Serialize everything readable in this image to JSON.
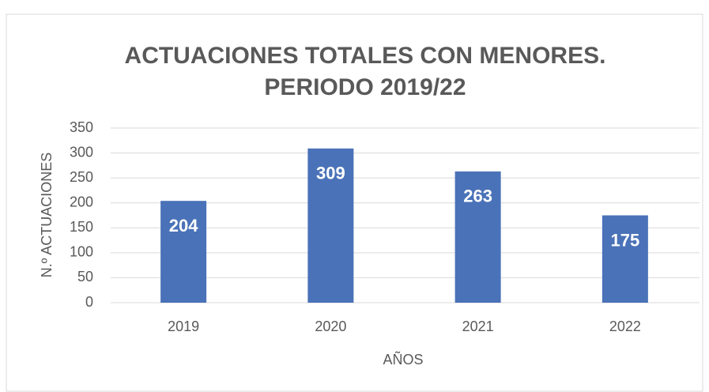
{
  "chart_data": {
    "type": "bar",
    "title": [
      "ACTUACIONES TOTALES CON MENORES.",
      "PERIODO 2019/22"
    ],
    "x_label": "AÑOS",
    "y_label": "N.º ACTUACIONES",
    "categories": [
      "2019",
      "2020",
      "2021",
      "2022"
    ],
    "values": [
      204,
      309,
      263,
      175
    ],
    "color": "#4a72b8",
    "ylim": [
      0,
      350
    ],
    "yticks": [
      0,
      50,
      100,
      150,
      200,
      250,
      300,
      350
    ],
    "grid": true,
    "data_labels": true
  }
}
